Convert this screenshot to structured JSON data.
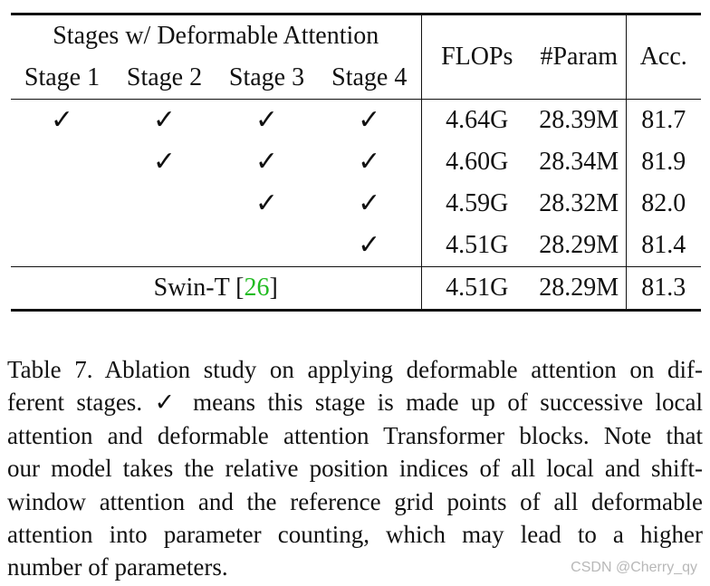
{
  "table": {
    "group_header": "Stages w/ Deformable Attention",
    "stage_headers": [
      "Stage 1",
      "Stage 2",
      "Stage 3",
      "Stage 4"
    ],
    "metric_headers": {
      "flops": "FLOPs",
      "params": "#Param",
      "acc": "Acc."
    },
    "check_glyph": "✓",
    "rows": [
      {
        "stages": [
          true,
          true,
          true,
          true
        ],
        "flops": "4.64G",
        "params": "28.39M",
        "acc": "81.7"
      },
      {
        "stages": [
          false,
          true,
          true,
          true
        ],
        "flops": "4.60G",
        "params": "28.34M",
        "acc": "81.9"
      },
      {
        "stages": [
          false,
          false,
          true,
          true
        ],
        "flops": "4.59G",
        "params": "28.32M",
        "acc": "82.0"
      },
      {
        "stages": [
          false,
          false,
          false,
          true
        ],
        "flops": "4.51G",
        "params": "28.29M",
        "acc": "81.4"
      }
    ],
    "baseline": {
      "name": "Swin-T",
      "cite_open": "[",
      "cite_num": "26",
      "cite_close": "]",
      "flops": "4.51G",
      "params": "28.29M",
      "acc": "81.3"
    },
    "cite_color": "#22bb22"
  },
  "caption": {
    "lines": [
      "Table 7. Ablation study on applying deformable attention on dif-",
      "ferent stages. ✓ means this stage is made up of successive local",
      "attention and deformable attention Transformer blocks. Note that",
      "our model takes the relative position indices of all local and shift-",
      "window attention and the reference grid points of all deformable",
      "attention into parameter counting, which may lead to a higher",
      "number of parameters."
    ]
  },
  "watermark": "CSDN @Cherry_qy"
}
